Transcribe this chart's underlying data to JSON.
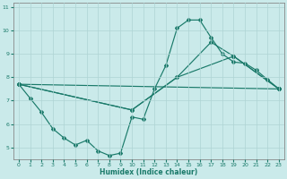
{
  "xlabel": "Humidex (Indice chaleur)",
  "xlim": [
    -0.5,
    23.5
  ],
  "ylim": [
    4.5,
    11.2
  ],
  "yticks": [
    5,
    6,
    7,
    8,
    9,
    10,
    11
  ],
  "xticks": [
    0,
    1,
    2,
    3,
    4,
    5,
    6,
    7,
    8,
    9,
    10,
    11,
    12,
    13,
    14,
    15,
    16,
    17,
    18,
    19,
    20,
    21,
    22,
    23
  ],
  "bg_color": "#caeaea",
  "grid_color": "#aed4d4",
  "line_color": "#1a7a6a",
  "line1_x": [
    0,
    1,
    2,
    3,
    4,
    5,
    6,
    7,
    8,
    9,
    10,
    11,
    12,
    13,
    14,
    15,
    16,
    17,
    18,
    19,
    20,
    21,
    22,
    23
  ],
  "line1_y": [
    7.7,
    7.1,
    6.5,
    5.8,
    5.4,
    5.1,
    5.3,
    4.85,
    4.65,
    4.75,
    6.3,
    6.2,
    7.5,
    8.5,
    10.1,
    10.45,
    10.45,
    9.7,
    9.0,
    8.65,
    8.6,
    8.3,
    7.9,
    7.5
  ],
  "line2_x": [
    0,
    23
  ],
  "line2_y": [
    7.7,
    7.5
  ],
  "line3_x": [
    0,
    10,
    14,
    19,
    23
  ],
  "line3_y": [
    7.7,
    6.6,
    8.0,
    8.9,
    7.5
  ],
  "line4_x": [
    0,
    10,
    14,
    17,
    19,
    23
  ],
  "line4_y": [
    7.7,
    6.6,
    8.0,
    9.5,
    8.9,
    7.5
  ]
}
